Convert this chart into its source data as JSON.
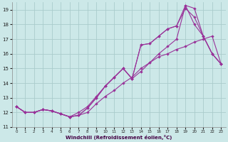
{
  "xlabel": "Windchill (Refroidissement éolien,°C)",
  "background_color": "#cce8e8",
  "grid_color": "#aacccc",
  "line_color": "#993399",
  "xlim": [
    -0.5,
    23.5
  ],
  "ylim": [
    11.0,
    19.5
  ],
  "xticks": [
    0,
    1,
    2,
    3,
    4,
    5,
    6,
    7,
    8,
    9,
    10,
    11,
    12,
    13,
    14,
    15,
    16,
    17,
    18,
    19,
    20,
    21,
    22,
    23
  ],
  "yticks": [
    11,
    12,
    13,
    14,
    15,
    16,
    17,
    18,
    19
  ],
  "lines": [
    {
      "x": [
        0,
        1,
        2,
        3,
        4,
        5,
        6,
        7,
        8,
        9,
        10,
        11,
        12,
        13,
        14,
        15,
        16,
        17,
        18,
        19,
        20,
        21,
        22,
        23
      ],
      "y": [
        12.4,
        12.0,
        12.0,
        12.2,
        12.1,
        11.9,
        11.7,
        11.8,
        12.0,
        12.6,
        13.1,
        13.5,
        14.0,
        14.4,
        15.0,
        15.4,
        15.8,
        16.0,
        16.3,
        16.5,
        16.8,
        17.0,
        17.2,
        15.3
      ]
    },
    {
      "x": [
        0,
        1,
        2,
        3,
        4,
        5,
        6,
        7,
        8,
        9,
        10,
        11,
        12,
        13,
        14,
        15,
        16,
        17,
        18,
        19,
        20,
        21,
        22,
        23
      ],
      "y": [
        12.4,
        12.0,
        12.0,
        12.2,
        12.1,
        11.9,
        11.7,
        12.0,
        12.4,
        13.1,
        13.8,
        14.4,
        15.0,
        14.3,
        16.6,
        16.7,
        17.2,
        17.7,
        17.9,
        19.1,
        18.5,
        17.2,
        16.0,
        15.3
      ]
    },
    {
      "x": [
        0,
        1,
        2,
        3,
        4,
        5,
        6,
        7,
        8,
        9,
        10,
        11,
        12,
        13,
        14,
        15,
        16,
        17,
        18,
        19,
        20,
        21,
        22,
        23
      ],
      "y": [
        12.4,
        12.0,
        12.0,
        12.2,
        12.1,
        11.9,
        11.7,
        11.8,
        12.3,
        13.0,
        13.8,
        14.4,
        15.0,
        14.3,
        16.6,
        16.7,
        17.2,
        17.7,
        17.9,
        19.3,
        19.1,
        17.2,
        16.0,
        15.3
      ]
    },
    {
      "x": [
        0,
        1,
        2,
        3,
        4,
        5,
        6,
        7,
        8,
        9,
        10,
        11,
        12,
        13,
        14,
        15,
        16,
        17,
        18,
        19,
        20,
        21,
        22,
        23
      ],
      "y": [
        12.4,
        12.0,
        12.0,
        12.2,
        12.1,
        11.9,
        11.7,
        11.8,
        12.3,
        13.0,
        13.8,
        14.4,
        15.0,
        14.3,
        14.8,
        15.4,
        16.0,
        16.5,
        17.0,
        19.3,
        18.0,
        17.2,
        16.0,
        15.3
      ]
    }
  ]
}
